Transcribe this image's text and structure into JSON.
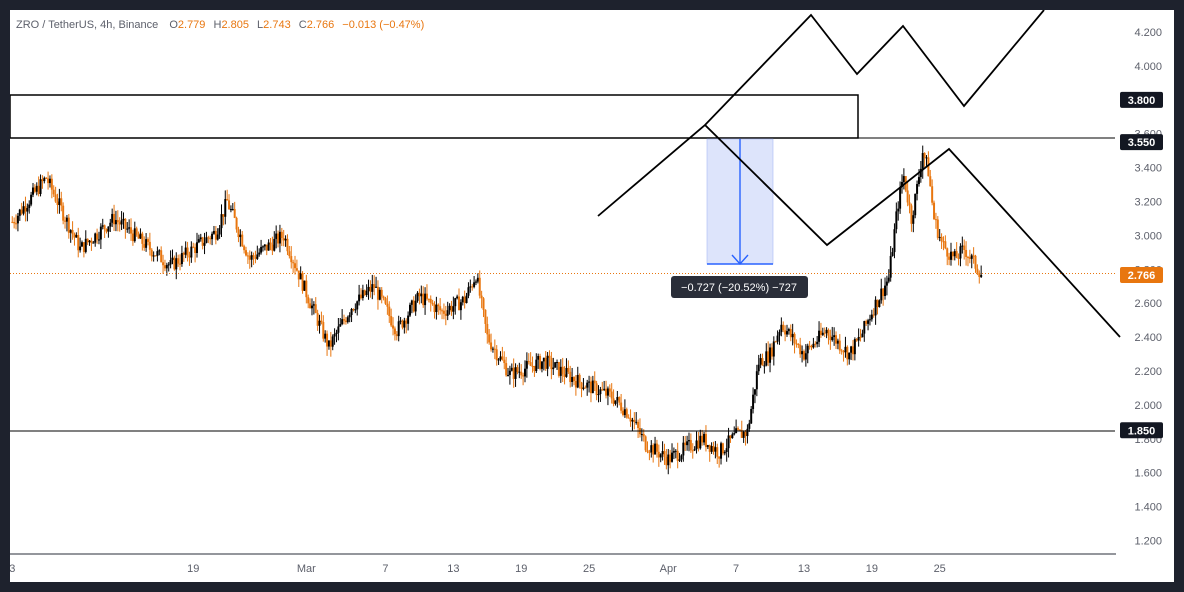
{
  "chart_data": {
    "type": "candlestick",
    "header": {
      "symbol": "ZRO / TetherUS, 4h, Binance",
      "o_label": "O",
      "o_value": "2.779",
      "h_label": "H",
      "h_value": "2.805",
      "l_label": "L",
      "l_value": "2.743",
      "c_label": "C",
      "c_value": "2.766",
      "change": "−0.013 (−0.47%)"
    },
    "y_ticks": [
      "4.200",
      "4.000",
      "3.800",
      "3.600",
      "3.400",
      "3.200",
      "3.000",
      "2.800",
      "2.600",
      "2.400",
      "2.200",
      "2.000",
      "1.800",
      "1.600",
      "1.400",
      "1.200"
    ],
    "y_tick_values": [
      4.2,
      4.0,
      3.8,
      3.6,
      3.4,
      3.2,
      3.0,
      2.8,
      2.6,
      2.4,
      2.2,
      2.0,
      1.8,
      1.6,
      1.4,
      1.2
    ],
    "ylim": [
      1.12,
      4.33
    ],
    "x_ticks": [
      "3",
      "19",
      "Mar",
      "7",
      "13",
      "19",
      "25",
      "Apr",
      "7",
      "13",
      "19",
      "25"
    ],
    "x_tick_days": [
      -13,
      3,
      13,
      20,
      26,
      32,
      38,
      45,
      51,
      57,
      63,
      69
    ],
    "xlim_days": [
      -13.2,
      84.5
    ],
    "price_labels": [
      {
        "name": "level-3800",
        "text": "3.800",
        "value": 3.8,
        "dark": true
      },
      {
        "name": "level-3550",
        "text": "3.550",
        "value": 3.55,
        "dark": true
      },
      {
        "name": "level-last",
        "text": "2.766",
        "value": 2.766,
        "dark": false
      },
      {
        "name": "level-1850",
        "text": "1.850",
        "value": 1.85,
        "dark": true
      }
    ],
    "measure_label": "−0.727 (−20.52%) −727",
    "key_points": [
      {
        "day": -13,
        "close": 3.08
      },
      {
        "day": -10,
        "close": 3.34
      },
      {
        "day": -7,
        "close": 2.92
      },
      {
        "day": -4,
        "close": 3.1
      },
      {
        "day": 1,
        "close": 2.82
      },
      {
        "day": 5,
        "close": 3.02
      },
      {
        "day": 6,
        "close": 3.2
      },
      {
        "day": 8,
        "close": 2.86
      },
      {
        "day": 11,
        "close": 3.0
      },
      {
        "day": 13,
        "close": 2.66
      },
      {
        "day": 15,
        "close": 2.34
      },
      {
        "day": 17,
        "close": 2.58
      },
      {
        "day": 19,
        "close": 2.7
      },
      {
        "day": 21,
        "close": 2.44
      },
      {
        "day": 23,
        "close": 2.64
      },
      {
        "day": 25,
        "close": 2.55
      },
      {
        "day": 27,
        "close": 2.62
      },
      {
        "day": 28,
        "close": 2.77
      },
      {
        "day": 29,
        "close": 2.4
      },
      {
        "day": 31,
        "close": 2.18
      },
      {
        "day": 34,
        "close": 2.26
      },
      {
        "day": 37,
        "close": 2.14
      },
      {
        "day": 40,
        "close": 2.05
      },
      {
        "day": 41.5,
        "close": 1.95
      },
      {
        "day": 43,
        "close": 1.77
      },
      {
        "day": 45,
        "close": 1.68
      },
      {
        "day": 46.5,
        "close": 1.74
      },
      {
        "day": 48,
        "close": 1.8
      },
      {
        "day": 49.5,
        "close": 1.72
      },
      {
        "day": 51,
        "close": 1.82
      },
      {
        "day": 52,
        "close": 1.84
      },
      {
        "day": 53,
        "close": 2.25
      },
      {
        "day": 54,
        "close": 2.3
      },
      {
        "day": 55,
        "close": 2.48
      },
      {
        "day": 57,
        "close": 2.3
      },
      {
        "day": 59,
        "close": 2.44
      },
      {
        "day": 61,
        "close": 2.3
      },
      {
        "day": 62,
        "close": 2.4
      },
      {
        "day": 63,
        "close": 2.55
      },
      {
        "day": 64.5,
        "close": 2.75
      },
      {
        "day": 65.3,
        "close": 3.18
      },
      {
        "day": 65.8,
        "close": 3.36
      },
      {
        "day": 66.5,
        "close": 3.1
      },
      {
        "day": 67,
        "close": 3.28
      },
      {
        "day": 67.5,
        "close": 3.5
      },
      {
        "day": 68,
        "close": 3.38
      },
      {
        "day": 68.5,
        "close": 3.1
      },
      {
        "day": 69.2,
        "close": 2.95
      },
      {
        "day": 70.3,
        "close": 2.86
      },
      {
        "day": 71.2,
        "close": 2.92
      },
      {
        "day": 72,
        "close": 2.84
      },
      {
        "day": 72.8,
        "close": 2.766
      }
    ],
    "colors": {
      "up": "#000000",
      "down": "#e8760f",
      "text_dark": "#131722",
      "change": "#e8760f",
      "measure_fill": "#dde4fb",
      "measure_line": "#2962ff"
    }
  }
}
